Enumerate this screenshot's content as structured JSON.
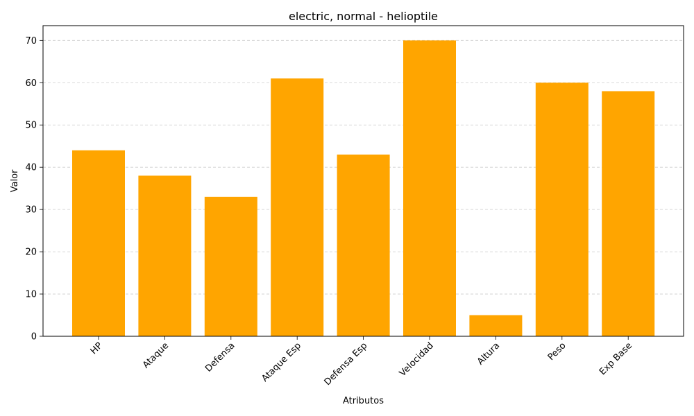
{
  "chart_data": {
    "type": "bar",
    "title": "electric, normal - helioptile",
    "xlabel": "Atributos",
    "ylabel": "Valor",
    "categories": [
      "HP",
      "Ataque",
      "Defensa",
      "Ataque Esp",
      "Defensa Esp",
      "Velocidad",
      "Altura",
      "Peso",
      "Exp Base"
    ],
    "values": [
      44,
      38,
      33,
      61,
      43,
      70,
      5,
      60,
      58
    ],
    "ylim": [
      0,
      73.5
    ],
    "yticks": [
      0,
      10,
      20,
      30,
      40,
      50,
      60,
      70
    ],
    "grid": "y-dashed",
    "bar_color": "#FFA500",
    "x_tick_rotation_deg": 45
  }
}
